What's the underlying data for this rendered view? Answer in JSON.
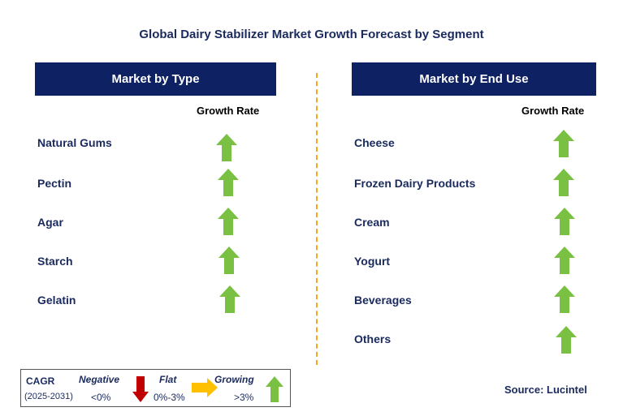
{
  "title": "Global Dairy Stabilizer Market Growth Forecast by Segment",
  "left_panel": {
    "header": "Market by Type",
    "growth_label": "Growth Rate",
    "items": [
      "Natural Gums",
      "Pectin",
      "Agar",
      "Starch",
      "Gelatin"
    ]
  },
  "right_panel": {
    "header": "Market by End Use",
    "growth_label": "Growth Rate",
    "items": [
      "Cheese",
      "Frozen Dairy Products",
      "Cream",
      "Yogurt",
      "Beverages",
      "Others"
    ]
  },
  "legend": {
    "cagr_label": "CAGR",
    "period": "(2025-2031)",
    "negative_label": "Negative",
    "negative_range": "<0%",
    "flat_label": "Flat",
    "flat_range": "0%-3%",
    "growing_label": "Growing",
    "growing_range": ">3%"
  },
  "source": "Source: Lucintel",
  "colors": {
    "header_bg": "#0d2163",
    "text": "#1a2a5e",
    "growing": "#7ac143",
    "negative": "#c00000",
    "flat": "#ffc000",
    "divider": "#f5a623"
  }
}
